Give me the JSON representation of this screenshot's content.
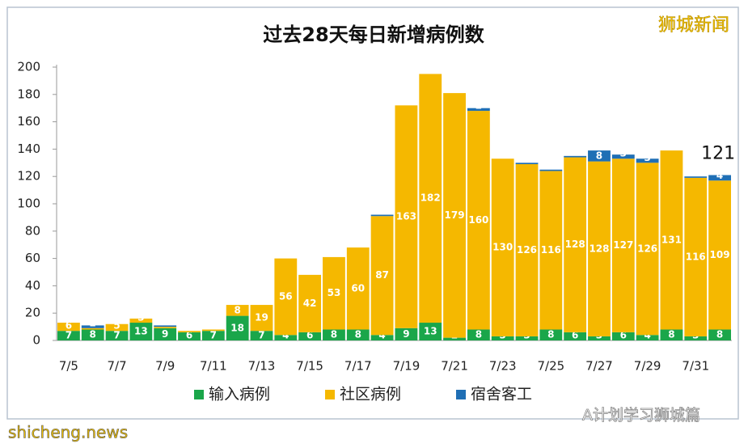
{
  "chart_data": {
    "type": "stacked-bar",
    "title": "过去28天每日新增病例数",
    "categories": [
      "7/5",
      null,
      "7/7",
      null,
      "7/9",
      null,
      "7/11",
      null,
      "7/13",
      null,
      "7/15",
      null,
      "7/17",
      null,
      "7/19",
      null,
      "7/21",
      null,
      "7/23",
      null,
      "7/25",
      null,
      "7/27",
      null,
      "7/29",
      null,
      "7/31",
      null
    ],
    "series": [
      {
        "name": "输入病例",
        "color": "#1aa64a",
        "values": [
          7,
          8,
          7,
          13,
          9,
          6,
          7,
          18,
          7,
          4,
          6,
          8,
          8,
          4,
          9,
          13,
          2,
          8,
          3,
          3,
          8,
          6,
          3,
          6,
          4,
          8,
          3,
          8
        ]
      },
      {
        "name": "社区病例",
        "color": "#f5b800",
        "values": [
          6,
          1,
          5,
          3,
          1,
          1,
          1,
          8,
          19,
          56,
          42,
          53,
          60,
          87,
          163,
          182,
          179,
          160,
          130,
          126,
          116,
          128,
          128,
          127,
          126,
          131,
          116,
          109
        ]
      },
      {
        "name": "宿舍客工",
        "color": "#1f6fb5",
        "values": [
          0,
          2,
          0,
          0,
          1,
          0,
          0,
          0,
          0,
          0,
          0,
          0,
          0,
          1,
          0,
          0,
          0,
          2,
          0,
          1,
          1,
          1,
          8,
          3,
          3,
          0,
          1,
          4
        ]
      }
    ],
    "annotation": "121",
    "ylim": [
      0,
      200
    ],
    "yticks": [
      0,
      20,
      40,
      60,
      80,
      100,
      120,
      140,
      160,
      180,
      200
    ],
    "grid": false
  },
  "watermark": "狮城新闻",
  "footer_left": "shicheng.news",
  "footer_right": "A计划学习狮城篇"
}
